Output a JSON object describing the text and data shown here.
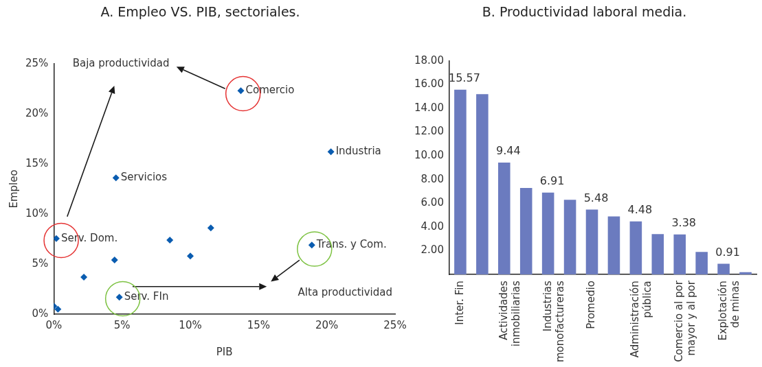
{
  "chart_data": [
    {
      "type": "scatter",
      "title": "A. Empleo VS. PIB, sectoriales.",
      "xlabel": "PIB",
      "ylabel": "Empleo",
      "x": [
        13.7,
        20.3,
        4.55,
        0.18,
        11.5,
        8.5,
        10.0,
        18.9,
        4.45,
        2.2,
        4.8,
        0.0,
        0.3
      ],
      "values": [
        22.3,
        16.2,
        13.6,
        7.55,
        8.6,
        7.4,
        5.8,
        6.9,
        5.4,
        3.7,
        1.7,
        0.8,
        0.5
      ],
      "color": "#0a5cb0",
      "marker": "diamond",
      "xlim": [
        0,
        25
      ],
      "xticks": [
        {
          "value": 0,
          "label": "0%"
        },
        {
          "value": 5,
          "label": "5%"
        },
        {
          "value": 10,
          "label": "10%"
        },
        {
          "value": 15,
          "label": "15%"
        },
        {
          "value": 20,
          "label": "20%"
        },
        {
          "value": 25,
          "label": "25%"
        }
      ],
      "ylim": [
        0,
        25
      ],
      "yticks": [
        {
          "value": 0,
          "label": "0%"
        },
        {
          "value": 5,
          "label": "5%"
        },
        {
          "value": 10,
          "label": "10%"
        },
        {
          "value": 15,
          "label": "15%"
        },
        {
          "value": 20,
          "label": "20%"
        },
        {
          "value": 25,
          "label": "25%"
        }
      ],
      "annotations": [
        {
          "text": "Comercio",
          "x": 13.7,
          "y": 22.3
        },
        {
          "text": "Industria",
          "x": 20.3,
          "y": 16.2
        },
        {
          "text": "Servicios",
          "x": 4.55,
          "y": 13.6
        },
        {
          "text": "Serv. Dom.",
          "x": 0.18,
          "y": 7.55
        },
        {
          "text": "Trans. y Com.",
          "x": 18.9,
          "y": 6.9
        },
        {
          "text": "Serv. FIn",
          "x": 4.8,
          "y": 1.7
        },
        "Baja productividad",
        "Alta productividad"
      ],
      "grid": false,
      "legend": false
    },
    {
      "type": "bar",
      "title": "B. Productividad laboral media.",
      "categories": [
        "Inter. Fin",
        null,
        "Actividades inmobiliarias",
        null,
        "Industrias monofactureras",
        null,
        "Promedio",
        null,
        "Administración pública",
        null,
        "Comercio al por mayor y al por",
        null,
        "Explotación de minas",
        null
      ],
      "values": [
        15.57,
        15.2,
        9.44,
        7.3,
        6.91,
        6.3,
        5.48,
        4.9,
        4.48,
        3.4,
        3.38,
        1.9,
        0.91,
        0.2
      ],
      "value_labels": [
        "15.57",
        null,
        "9.44",
        null,
        "6.91",
        null,
        "5.48",
        null,
        "4.48",
        null,
        "3.38",
        null,
        "0.91",
        null
      ],
      "color": "#6b7bbf",
      "ylim": [
        0,
        18
      ],
      "yticks": [
        {
          "value": 0,
          "label": null
        },
        {
          "value": 2,
          "label": "2.00"
        },
        {
          "value": 4,
          "label": "4.00"
        },
        {
          "value": 6,
          "label": "6.00"
        },
        {
          "value": 8,
          "label": "8.00"
        },
        {
          "value": 10,
          "label": "10.00"
        },
        {
          "value": 12,
          "label": "12.00"
        },
        {
          "value": 14,
          "label": "14.00"
        },
        {
          "value": 16,
          "label": "16.00"
        },
        {
          "value": 18,
          "label": "18.00"
        }
      ],
      "grid": false,
      "legend": false
    }
  ]
}
